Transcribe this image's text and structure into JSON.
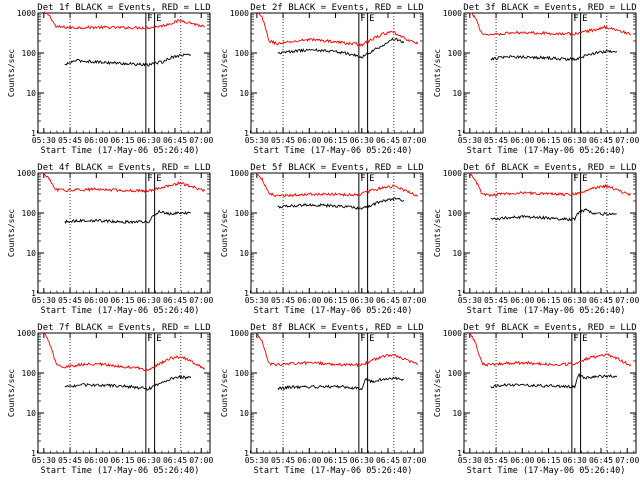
{
  "chart_data": [
    {
      "type": "line",
      "title": "Det 1f BLACK = Events, RED = LLD",
      "xlabel": "Start Time (17-May-06 05:26:40)",
      "ylabel": "Counts/sec",
      "yscale": "log",
      "ylim": [
        1,
        1000
      ],
      "xticks": [
        "05:30",
        "05:45",
        "06:00",
        "06:15",
        "06:30",
        "06:45",
        "07:00"
      ],
      "yticks": [
        "1",
        "10",
        "100",
        "1000"
      ],
      "markers": [
        "F",
        "E"
      ],
      "series": [
        {
          "color": "#ff0000",
          "x": [
            0,
            3,
            7,
            12,
            18,
            30,
            45,
            60,
            68,
            73,
            78,
            83,
            88,
            92
          ],
          "y": [
            1000,
            900,
            450,
            440,
            430,
            440,
            430,
            430,
            480,
            560,
            650,
            580,
            500,
            450
          ]
        },
        {
          "color": "#000000",
          "x": [
            12,
            18,
            30,
            45,
            60,
            62,
            68,
            72,
            76,
            80,
            84
          ],
          "y": [
            50,
            65,
            60,
            55,
            50,
            55,
            60,
            75,
            85,
            90,
            90
          ]
        }
      ]
    },
    {
      "type": "line",
      "title": "Det 2f BLACK = Events, RED = LLD",
      "xlabel": "Start Time (17-May-06 05:26:40)",
      "ylabel": "Counts/sec",
      "yscale": "log",
      "ylim": [
        1,
        1000
      ],
      "xticks": [
        "05:30",
        "05:45",
        "06:00",
        "06:15",
        "06:30",
        "06:45",
        "07:00"
      ],
      "yticks": [
        "1",
        "10",
        "100",
        "1000"
      ],
      "markers": [
        "F",
        "E"
      ],
      "series": [
        {
          "color": "#ff0000",
          "x": [
            0,
            3,
            7,
            12,
            20,
            30,
            45,
            55,
            60,
            66,
            72,
            78,
            82,
            88,
            92
          ],
          "y": [
            1000,
            800,
            200,
            170,
            190,
            220,
            190,
            170,
            160,
            220,
            300,
            330,
            260,
            200,
            170
          ]
        },
        {
          "color": "#000000",
          "x": [
            12,
            20,
            30,
            45,
            55,
            60,
            66,
            72,
            78,
            82,
            84
          ],
          "y": [
            100,
            110,
            120,
            110,
            90,
            80,
            110,
            160,
            220,
            210,
            180
          ]
        }
      ]
    },
    {
      "type": "line",
      "title": "Det 3f BLACK = Events, RED = LLD",
      "xlabel": "Start Time (17-May-06 05:26:40)",
      "ylabel": "Counts/sec",
      "yscale": "log",
      "ylim": [
        1,
        1000
      ],
      "xticks": [
        "05:30",
        "05:45",
        "06:00",
        "06:15",
        "06:30",
        "06:45",
        "07:00"
      ],
      "yticks": [
        "1",
        "10",
        "100",
        "1000"
      ],
      "markers": [
        "F",
        "E"
      ],
      "series": [
        {
          "color": "#ff0000",
          "x": [
            0,
            3,
            7,
            12,
            20,
            30,
            45,
            55,
            60,
            66,
            72,
            78,
            84,
            88,
            92
          ],
          "y": [
            1000,
            800,
            300,
            290,
            310,
            330,
            310,
            300,
            300,
            350,
            380,
            450,
            380,
            330,
            290
          ]
        },
        {
          "color": "#000000",
          "x": [
            12,
            20,
            30,
            45,
            55,
            60,
            66,
            72,
            78,
            84
          ],
          "y": [
            70,
            80,
            80,
            75,
            70,
            70,
            85,
            100,
            110,
            110
          ]
        }
      ]
    },
    {
      "type": "line",
      "title": "Det 4f BLACK = Events, RED = LLD",
      "xlabel": "Start Time (17-May-06 05:26:40)",
      "ylabel": "Counts/sec",
      "yscale": "log",
      "ylim": [
        1,
        1000
      ],
      "xticks": [
        "05:30",
        "05:45",
        "06:00",
        "06:15",
        "06:30",
        "06:45",
        "07:00"
      ],
      "yticks": [
        "1",
        "10",
        "100",
        "1000"
      ],
      "markers": [
        "F",
        "E"
      ],
      "series": [
        {
          "color": "#ff0000",
          "x": [
            0,
            3,
            7,
            12,
            20,
            30,
            45,
            55,
            60,
            66,
            72,
            78,
            84,
            88,
            92
          ],
          "y": [
            1000,
            700,
            380,
            370,
            380,
            390,
            370,
            360,
            360,
            420,
            480,
            560,
            470,
            400,
            360
          ]
        },
        {
          "color": "#000000",
          "x": [
            12,
            20,
            30,
            45,
            55,
            60,
            62,
            66,
            72,
            78,
            84
          ],
          "y": [
            60,
            65,
            65,
            60,
            60,
            60,
            80,
            110,
            95,
            100,
            100
          ]
        }
      ]
    },
    {
      "type": "line",
      "title": "Det 5f BLACK = Events, RED = LLD",
      "xlabel": "Start Time (17-May-06 05:26:40)",
      "ylabel": "Counts/sec",
      "yscale": "log",
      "ylim": [
        1,
        1000
      ],
      "xticks": [
        "05:30",
        "05:45",
        "06:00",
        "06:15",
        "06:30",
        "06:45",
        "07:00"
      ],
      "yticks": [
        "1",
        "10",
        "100",
        "1000"
      ],
      "markers": [
        "F",
        "E"
      ],
      "series": [
        {
          "color": "#ff0000",
          "x": [
            0,
            3,
            7,
            12,
            20,
            30,
            45,
            55,
            60,
            66,
            72,
            78,
            84,
            88,
            92
          ],
          "y": [
            1000,
            700,
            300,
            260,
            280,
            300,
            290,
            290,
            300,
            370,
            430,
            470,
            380,
            320,
            270
          ]
        },
        {
          "color": "#000000",
          "x": [
            12,
            20,
            30,
            45,
            55,
            60,
            66,
            72,
            78,
            84
          ],
          "y": [
            140,
            150,
            160,
            150,
            140,
            130,
            160,
            200,
            230,
            210
          ]
        }
      ]
    },
    {
      "type": "line",
      "title": "Det 6f BLACK = Events, RED = LLD",
      "xlabel": "Start Time (17-May-06 05:26:40)",
      "ylabel": "Counts/sec",
      "yscale": "log",
      "ylim": [
        1,
        1000
      ],
      "xticks": [
        "05:30",
        "05:45",
        "06:00",
        "06:15",
        "06:30",
        "06:45",
        "07:00"
      ],
      "yticks": [
        "1",
        "10",
        "100",
        "1000"
      ],
      "markers": [
        "F",
        "E"
      ],
      "series": [
        {
          "color": "#ff0000",
          "x": [
            0,
            3,
            7,
            12,
            20,
            30,
            45,
            55,
            60,
            66,
            72,
            78,
            84,
            88,
            92
          ],
          "y": [
            1000,
            700,
            290,
            280,
            300,
            320,
            300,
            290,
            300,
            360,
            430,
            480,
            380,
            320,
            290
          ]
        },
        {
          "color": "#000000",
          "x": [
            12,
            20,
            30,
            45,
            55,
            60,
            62,
            66,
            72,
            78,
            84
          ],
          "y": [
            70,
            75,
            80,
            75,
            70,
            70,
            100,
            120,
            95,
            95,
            95
          ]
        }
      ]
    },
    {
      "type": "line",
      "title": "Det 7f BLACK = Events, RED = LLD",
      "xlabel": "Start Time (17-May-06 05:26:40)",
      "ylabel": "Counts/sec",
      "yscale": "log",
      "ylim": [
        1,
        1000
      ],
      "xticks": [
        "05:30",
        "05:45",
        "06:00",
        "06:15",
        "06:30",
        "06:45",
        "07:00"
      ],
      "yticks": [
        "1",
        "10",
        "100",
        "1000"
      ],
      "markers": [
        "F",
        "E"
      ],
      "series": [
        {
          "color": "#ff0000",
          "x": [
            0,
            3,
            7,
            12,
            20,
            30,
            40,
            50,
            60,
            66,
            72,
            78,
            84,
            88,
            92
          ],
          "y": [
            1000,
            600,
            170,
            140,
            160,
            170,
            150,
            140,
            120,
            170,
            230,
            260,
            200,
            160,
            130
          ]
        },
        {
          "color": "#000000",
          "x": [
            12,
            20,
            30,
            40,
            50,
            60,
            66,
            72,
            78,
            84
          ],
          "y": [
            45,
            50,
            50,
            48,
            45,
            40,
            55,
            70,
            80,
            75
          ]
        }
      ]
    },
    {
      "type": "line",
      "title": "Det 8f BLACK = Events, RED = LLD",
      "xlabel": "Start Time (17-May-06 05:26:40)",
      "ylabel": "Counts/sec",
      "yscale": "log",
      "ylim": [
        1,
        1000
      ],
      "xticks": [
        "05:30",
        "05:45",
        "06:00",
        "06:15",
        "06:30",
        "06:45",
        "07:00"
      ],
      "yticks": [
        "1",
        "10",
        "100",
        "1000"
      ],
      "markers": [
        "F",
        "E"
      ],
      "series": [
        {
          "color": "#ff0000",
          "x": [
            0,
            3,
            7,
            12,
            20,
            30,
            40,
            50,
            60,
            66,
            72,
            78,
            84,
            88,
            92
          ],
          "y": [
            1000,
            600,
            170,
            160,
            175,
            180,
            170,
            160,
            160,
            210,
            260,
            290,
            230,
            190,
            160
          ]
        },
        {
          "color": "#000000",
          "x": [
            12,
            20,
            30,
            40,
            50,
            60,
            62,
            66,
            72,
            78,
            84
          ],
          "y": [
            40,
            45,
            45,
            45,
            45,
            40,
            70,
            60,
            70,
            75,
            70
          ]
        }
      ]
    },
    {
      "type": "line",
      "title": "Det 9f BLACK = Events, RED = LLD",
      "xlabel": "Start Time (17-May-06 05:26:40)",
      "ylabel": "Counts/sec",
      "yscale": "log",
      "ylim": [
        1,
        1000
      ],
      "xticks": [
        "05:30",
        "05:45",
        "06:00",
        "06:15",
        "06:30",
        "06:45",
        "07:00"
      ],
      "yticks": [
        "1",
        "10",
        "100",
        "1000"
      ],
      "markers": [
        "F",
        "E"
      ],
      "series": [
        {
          "color": "#ff0000",
          "x": [
            0,
            3,
            7,
            12,
            20,
            30,
            40,
            50,
            60,
            66,
            72,
            78,
            84,
            88,
            92
          ],
          "y": [
            1000,
            600,
            170,
            160,
            175,
            180,
            170,
            160,
            170,
            220,
            260,
            290,
            230,
            190,
            160
          ]
        },
        {
          "color": "#000000",
          "x": [
            12,
            20,
            30,
            40,
            50,
            60,
            62,
            66,
            72,
            78,
            84
          ],
          "y": [
            45,
            50,
            50,
            48,
            47,
            45,
            90,
            75,
            80,
            85,
            80
          ]
        }
      ]
    }
  ]
}
